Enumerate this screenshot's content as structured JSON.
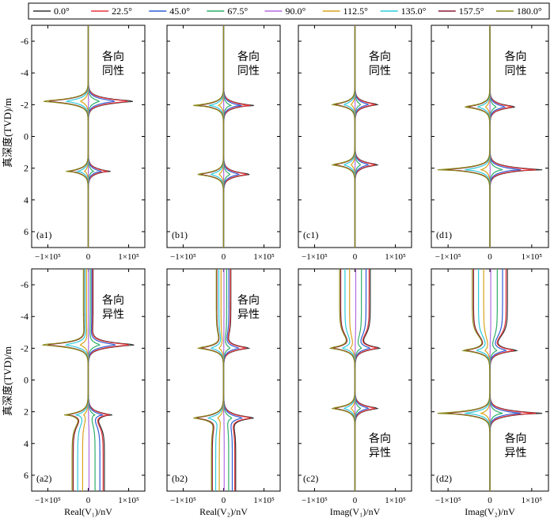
{
  "legend": {
    "items": [
      {
        "label": "0.0°",
        "color": "#333333"
      },
      {
        "label": "22.5°",
        "color": "#e8343a"
      },
      {
        "label": "45.0°",
        "color": "#2f5fd4"
      },
      {
        "label": "67.5°",
        "color": "#2eae6a"
      },
      {
        "label": "90.0°",
        "color": "#b36be0"
      },
      {
        "label": "112.5°",
        "color": "#d9a31e"
      },
      {
        "label": "135.0°",
        "color": "#2fcad9"
      },
      {
        "label": "157.5°",
        "color": "#8b1a35"
      },
      {
        "label": "180.0°",
        "color": "#8a8a1a"
      }
    ]
  },
  "ylabel": "真深度(TVD)/m",
  "chart_data": [
    {
      "type": "line",
      "panel": "(a1)",
      "annotation": "各向\n同性",
      "xlabel": "",
      "xticks": [
        "−1×10⁵",
        "0",
        "1×10⁵"
      ],
      "yticks": [
        "-6",
        "-4",
        "-2",
        "0",
        "2",
        "4",
        "6"
      ],
      "ylim": [
        7,
        -7
      ],
      "xlim": [
        -1.4,
        1.4
      ],
      "x_unit_scale": "1e5",
      "peaks": [
        [
          -2.2,
          1.3
        ],
        [
          2.2,
          0.55
        ]
      ],
      "tail_top": 0,
      "tail_bottom": 0,
      "series_note": "9 dip-angle series, 0.0°–180.0°"
    },
    {
      "type": "line",
      "panel": "(b1)",
      "annotation": "各向\n同性",
      "xlabel": "",
      "xticks": [
        "−1×10⁵",
        "0",
        "1×10⁵"
      ],
      "yticks": [],
      "ylim": [
        7,
        -7
      ],
      "xlim": [
        -1.4,
        1.4
      ],
      "x_unit_scale": "1e5",
      "peaks": [
        [
          -1.95,
          0.75
        ],
        [
          2.4,
          0.75
        ]
      ],
      "tail_top": 0,
      "tail_bottom": 0,
      "series_note": "9 dip-angle series, 0.0°–180.0°"
    },
    {
      "type": "line",
      "panel": "(c1)",
      "annotation": "各向\n同性",
      "xlabel": "",
      "xticks": [
        "−1×10⁵",
        "0",
        "1×10⁵"
      ],
      "yticks": [],
      "ylim": [
        7,
        -7
      ],
      "xlim": [
        -1.4,
        1.4
      ],
      "x_unit_scale": "1e5",
      "peaks": [
        [
          -2.0,
          0.65
        ],
        [
          1.8,
          0.65
        ]
      ],
      "tail_top": 0,
      "tail_bottom": 0,
      "series_note": "9 dip-angle series, 0.0°–180.0°"
    },
    {
      "type": "line",
      "panel": "(d1)",
      "annotation": "各向\n同性",
      "xlabel": "",
      "xticks": [
        "−1×10⁵",
        "0",
        "1×10⁵"
      ],
      "yticks": [],
      "ylim": [
        7,
        -7
      ],
      "xlim": [
        -1.4,
        1.4
      ],
      "x_unit_scale": "1e5",
      "peaks": [
        [
          -1.85,
          0.7
        ],
        [
          2.1,
          1.25
        ]
      ],
      "tail_top": 0,
      "tail_bottom": 0,
      "series_note": "9 dip-angle series, 0.0°–180.0°"
    },
    {
      "type": "line",
      "panel": "(a2)",
      "annotation": "各向\n异性",
      "xlabel": "Real(V₁)/nV",
      "xticks": [
        "−1×10⁵",
        "0",
        "1×10⁵"
      ],
      "yticks": [
        "-6",
        "-4",
        "-2",
        "0",
        "2",
        "4",
        "6"
      ],
      "ylim": [
        7,
        -7
      ],
      "xlim": [
        -1.4,
        1.4
      ],
      "x_unit_scale": "1e5",
      "peaks": [
        [
          -2.2,
          1.3
        ],
        [
          2.2,
          0.5
        ]
      ],
      "tail_top": 0.12,
      "tail_bottom": 0.4,
      "series_note": "9 dip-angle series, 0.0°–180.0°"
    },
    {
      "type": "line",
      "panel": "(b2)",
      "annotation": "各向\n异性",
      "xlabel": "Real(V₂)/nV",
      "xticks": [
        "−1×10⁵",
        "0",
        "1×10⁵"
      ],
      "yticks": [],
      "ylim": [
        7,
        -7
      ],
      "xlim": [
        -1.4,
        1.4
      ],
      "x_unit_scale": "1e5",
      "peaks": [
        [
          -2.0,
          0.7
        ],
        [
          2.4,
          0.75
        ]
      ],
      "tail_top": 0.18,
      "tail_bottom": 0.3,
      "series_note": "9 dip-angle series, 0.0°–180.0°"
    },
    {
      "type": "line",
      "panel": "(c2)",
      "annotation": "各向\n异性",
      "xlabel": "Imag(V₁)/nV",
      "xticks": [
        "−1×10⁵",
        "0",
        "1×10⁵"
      ],
      "yticks": [],
      "ylim": [
        7,
        -7
      ],
      "xlim": [
        -1.4,
        1.4
      ],
      "x_unit_scale": "1e5",
      "peaks": [
        [
          -2.0,
          0.65
        ],
        [
          1.8,
          0.65
        ]
      ],
      "tail_top": 0.38,
      "tail_bottom": 0,
      "series_note": "9 dip-angle series, 0.0°–180.0°"
    },
    {
      "type": "line",
      "panel": "(d2)",
      "annotation": "各向\n异性",
      "xlabel": "Imag(V₂)/nV",
      "xticks": [
        "−1×10⁵",
        "0",
        "1×10⁵"
      ],
      "yticks": [],
      "ylim": [
        7,
        -7
      ],
      "xlim": [
        -1.4,
        1.4
      ],
      "x_unit_scale": "1e5",
      "peaks": [
        [
          -1.85,
          0.7
        ],
        [
          2.1,
          1.25
        ]
      ],
      "tail_top": 0.42,
      "tail_bottom": 0,
      "series_note": "9 dip-angle series, 0.0°–180.0°"
    }
  ]
}
